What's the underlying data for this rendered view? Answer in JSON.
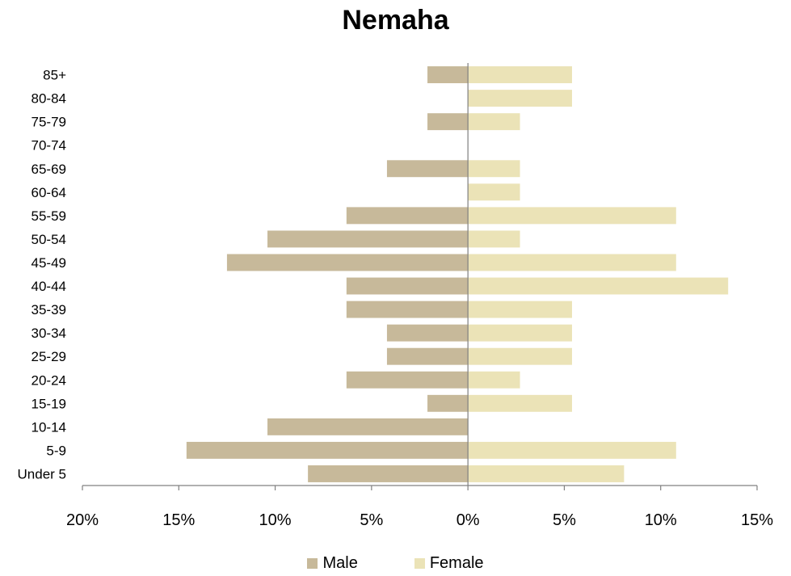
{
  "chart_data": {
    "type": "bar",
    "orientation": "horizontal",
    "title": "Nemaha",
    "categories": [
      "Under 5",
      "5-9",
      "10-14",
      "15-19",
      "20-24",
      "25-29",
      "30-34",
      "35-39",
      "40-44",
      "45-49",
      "50-54",
      "55-59",
      "60-64",
      "65-69",
      "70-74",
      "75-79",
      "80-84",
      "85+"
    ],
    "series": [
      {
        "name": "Male",
        "color": "#c7b99a",
        "values": [
          8.3,
          14.6,
          10.4,
          2.1,
          6.3,
          4.2,
          4.2,
          6.3,
          6.3,
          12.5,
          10.4,
          6.3,
          0,
          4.2,
          0,
          2.1,
          0,
          2.1
        ]
      },
      {
        "name": "Female",
        "color": "#ebe3b7",
        "values": [
          8.1,
          10.8,
          0,
          5.4,
          2.7,
          5.4,
          5.4,
          5.4,
          13.5,
          10.8,
          2.7,
          10.8,
          2.7,
          2.7,
          0,
          2.7,
          5.4,
          5.4
        ]
      }
    ],
    "xlim": [
      -20,
      15
    ],
    "xticks": [
      -20,
      -15,
      -10,
      -5,
      0,
      5,
      10,
      15
    ],
    "xtick_labels": [
      "20%",
      "15%",
      "10%",
      "5%",
      "0%",
      "5%",
      "10%",
      "15%"
    ],
    "legend_position": "bottom",
    "grid": false
  }
}
